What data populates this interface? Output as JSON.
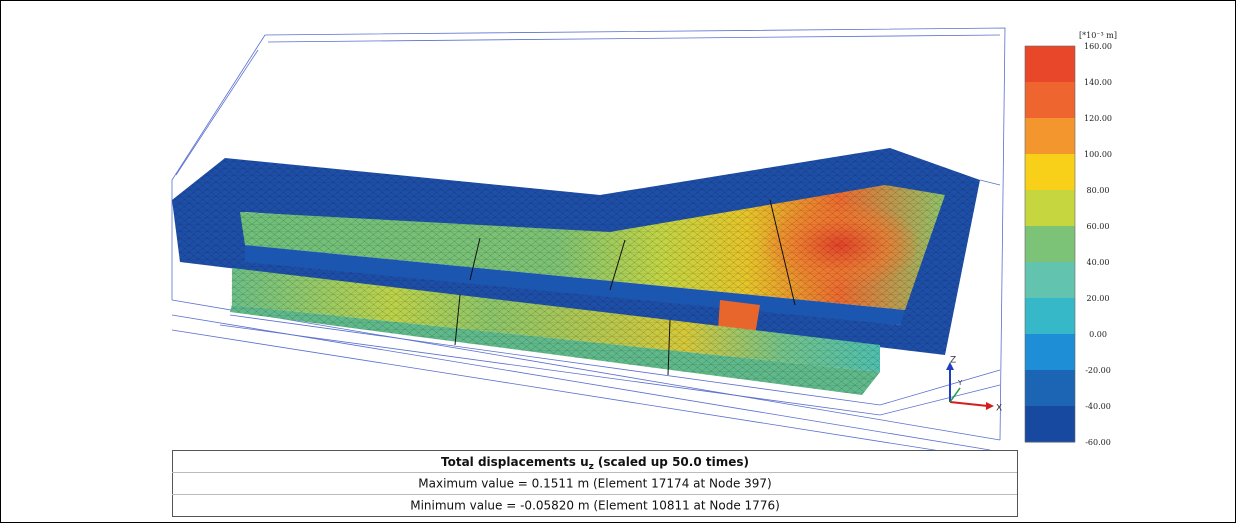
{
  "legend": {
    "unit": "[*10⁻³ m]",
    "ticks": [
      "160.00",
      "140.00",
      "120.00",
      "100.00",
      "80.00",
      "60.00",
      "40.00",
      "20.00",
      "0.00",
      "-20.00",
      "-40.00",
      "-60.00"
    ],
    "colors": [
      "#e8472a",
      "#ee6530",
      "#f3962e",
      "#f8d01a",
      "#c6d63e",
      "#7cc277",
      "#62c4ae",
      "#36b8c8",
      "#1e8fd7",
      "#1c64b4",
      "#1849a0"
    ]
  },
  "axes": {
    "z": "Z",
    "y": "Y",
    "x": "X"
  },
  "caption": {
    "title": "Total displacements u",
    "subscript": "z",
    "title_suffix": "(scaled up 50.0 times)",
    "max_line": "Maximum value = 0.1511 m (Element 17174 at Node 397)",
    "min_line": "Minimum value = -0.05820 m (Element 10811 at Node 1776)"
  }
}
